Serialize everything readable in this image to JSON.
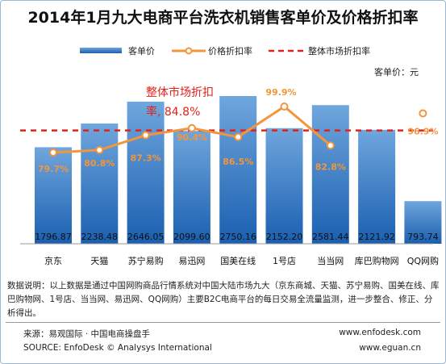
{
  "title": "2014年1月九大电商平台洗衣机销售客单价及价格折扣率",
  "chart_data": {
    "type": "bar+line",
    "unit_label": "客单价：元",
    "legend": [
      "客单价",
      "价格折扣率",
      "整体市场折扣率"
    ],
    "categories": [
      "京东",
      "天猫",
      "苏宁易购",
      "易迅网",
      "国美在线",
      "1号店",
      "当当网",
      "库巴购物网",
      "QQ网购"
    ],
    "bar_values": [
      1796.87,
      2238.48,
      2646.05,
      2099.6,
      2750.16,
      2152.2,
      2581.44,
      2121.92,
      793.74
    ],
    "bar_labels": [
      "1796.87",
      "2238.48",
      "2646.05",
      "2099.60",
      "2750.16",
      "2152.20",
      "2581.44",
      "2121.92",
      "793.74"
    ],
    "discount_values": [
      79.7,
      80.8,
      87.3,
      90.4,
      86.5,
      99.9,
      82.8,
      null,
      96.9
    ],
    "discount_labels": [
      "79.7%",
      "80.8%",
      "87.3%",
      "90.4%",
      "86.5%",
      "99.9%",
      "82.8%",
      "",
      "96.9%"
    ],
    "market_discount": 84.8,
    "market_annotation": [
      "整体市场折扣",
      "率, 84.8%"
    ]
  },
  "note": "数据说明：以上数据是通过中国网购商品行情系统对中国大陆市场九大（京东商城、天猫、苏宁易购、国美在线、库巴购物网、1号店、当当网、易迅网、QQ网购）主要B2C电商平台的每日交易全流量监测，进一步整合、修正、分析得出。",
  "footer": {
    "source_cn": "来源：易观国际 · 中国电商操盘手",
    "url1": "www.enfodesk.com",
    "source_en": "SOURCE: EnfoDesk © Analysys International",
    "url2": "www.eguan.cn"
  },
  "colors": {
    "bar_top": "#6fa6dd",
    "bar_bottom": "#1a5fb0",
    "line": "#f3953a",
    "market": "#e3211a",
    "text_discount": "#f3953a",
    "text_market": "#e3211a"
  }
}
